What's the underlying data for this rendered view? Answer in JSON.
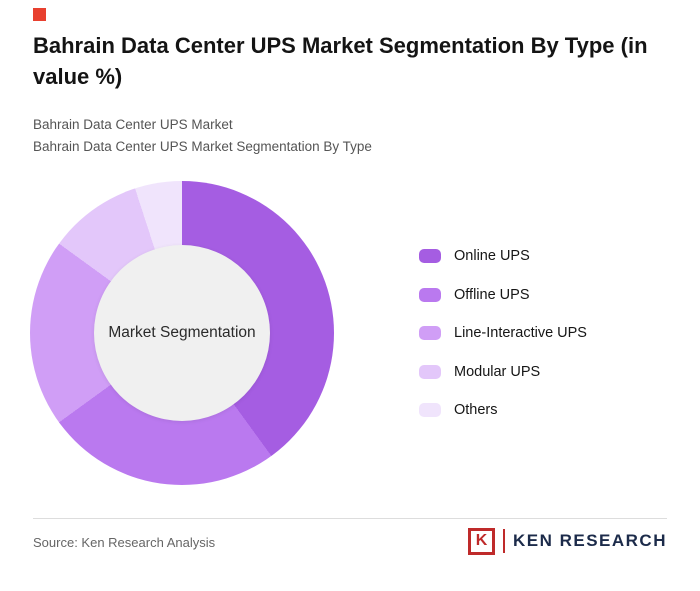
{
  "brand": {
    "corner_red": "#e8402f",
    "logo_red": "#bf2a2a",
    "logo_navy": "#1c2b4a",
    "divider_gray": "#dddddd"
  },
  "page": {
    "title": "Bahrain Data Center UPS Market Segmentation By Type (in value %)",
    "subtitle_line1": "Bahrain Data Center UPS Market",
    "subtitle_line2": "Bahrain Data Center UPS Market Segmentation By Type",
    "source": "Source: Ken Research Analysis",
    "logo": {
      "letter": "K",
      "text": "KEN RESEARCH"
    }
  },
  "chart_data": {
    "type": "pie",
    "donut": true,
    "title": "Bahrain Data Center UPS Market Segmentation By Type (in value %)",
    "center_label": "Market Segmentation",
    "unit": "value %",
    "categories": [
      "Online UPS",
      "Offline UPS",
      "Line-Interactive UPS",
      "Modular UPS",
      "Others"
    ],
    "values": [
      40,
      25,
      20,
      10,
      5
    ],
    "colors": [
      "#a55de2",
      "#ba79ef",
      "#d09ef6",
      "#e3c7fa",
      "#f0e4fc"
    ],
    "center_color": "#f0f0f0",
    "legend_position": "right",
    "start_angle_deg": 0
  }
}
